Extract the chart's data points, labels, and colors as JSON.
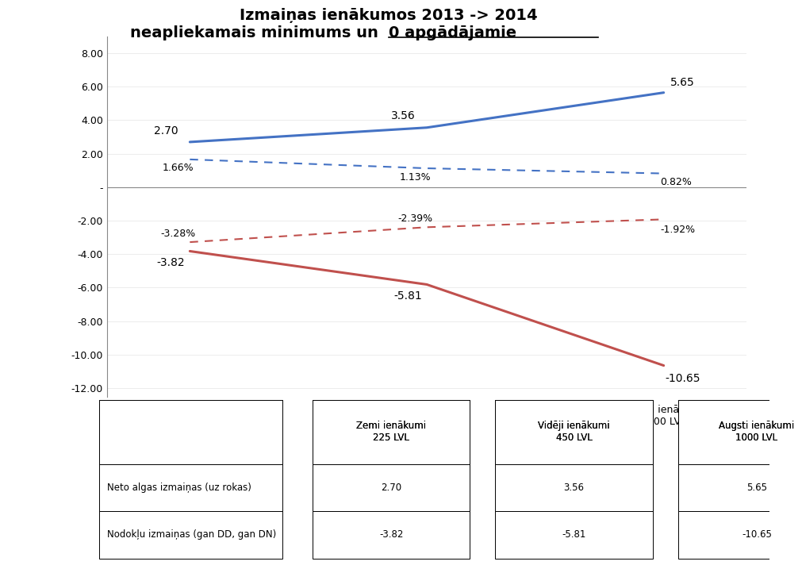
{
  "title_line1": "Izmaiņas ienākumos 2013 -> 2014",
  "title_line2_before": "neapliekamais minimums un  ",
  "title_line2_underline": "0 apgādājamie",
  "categories": [
    "Zemi ienākumi\n225 LVL",
    "Vidēji ienākumi\n450 LVL",
    "Augsti ienākumi\n1000 LVL"
  ],
  "x_positions": [
    0,
    1,
    2
  ],
  "line1_values": [
    2.7,
    3.56,
    5.65
  ],
  "line1_label_values": [
    "2.70",
    "3.56",
    "5.65"
  ],
  "line1_color": "#4472C4",
  "line1_pct_values": [
    "1.66%",
    "1.13%",
    "0.82%"
  ],
  "line1_pct_data": [
    1.66,
    1.13,
    0.82
  ],
  "line2_values": [
    -3.82,
    -5.81,
    -10.65
  ],
  "line2_label_values": [
    "-3.82",
    "-5.81",
    "-10.65"
  ],
  "line2_color": "#C0504D",
  "line2_pct_values": [
    "-3.28%",
    "-2.39%",
    "-1.92%"
  ],
  "line2_pct_data": [
    -3.28,
    -2.39,
    -1.92
  ],
  "ylim": [
    -12.5,
    9.0
  ],
  "yticks": [
    8.0,
    6.0,
    4.0,
    2.0,
    0.0,
    -2.0,
    -4.0,
    -6.0,
    -8.0,
    -10.0,
    -12.0
  ],
  "ytick_labels": [
    "8.00",
    "6.00",
    "4.00",
    "2.00",
    "-",
    "-2.00",
    "-4.00",
    "-6.00",
    "-8.00",
    "-10.00",
    "-12.00"
  ],
  "table_col0_header": "",
  "table_col1_header": "Zemi ienākumi\n225 LVL",
  "table_col2_header": "Vidēji ienākumi\n450 LVL",
  "table_col3_header": "Augsti ienākumi\n1000 LVL",
  "table_row1_label": "Neto algas izmaiņas (uz rokas)",
  "table_row1_values": [
    "2.70",
    "3.56",
    "5.65"
  ],
  "table_row2_label": "Nodokļu izmaiņas (gan DD, gan DN)",
  "table_row2_values": [
    "-3.82",
    "-5.81",
    "-10.65"
  ],
  "background_color": "#FFFFFF"
}
